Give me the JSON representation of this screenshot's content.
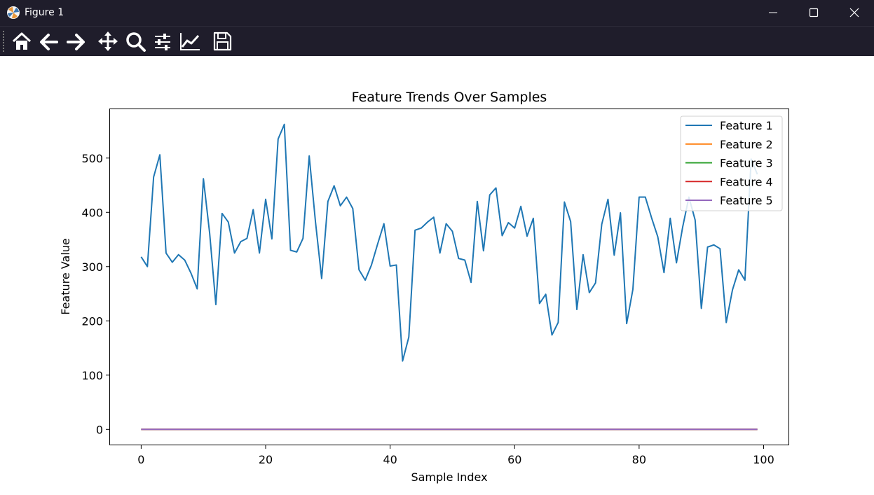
{
  "window": {
    "title": "Figure 1",
    "controls": [
      "minimize",
      "maximize",
      "close"
    ]
  },
  "toolbar": {
    "tools": [
      {
        "name": "home-icon"
      },
      {
        "name": "back-icon"
      },
      {
        "name": "forward-icon"
      },
      {
        "name": "pan-icon"
      },
      {
        "name": "zoom-icon"
      },
      {
        "name": "configure-subplots-icon"
      },
      {
        "name": "edit-axis-icon"
      },
      {
        "name": "save-icon"
      }
    ]
  },
  "chart_data": {
    "type": "line",
    "title": "Feature Trends Over Samples",
    "xlabel": "Sample Index",
    "ylabel": "Feature Value",
    "xlim": [
      -5,
      104
    ],
    "ylim": [
      -28,
      590
    ],
    "xticks": [
      0,
      20,
      40,
      60,
      80,
      100
    ],
    "yticks": [
      0,
      100,
      200,
      300,
      400,
      500
    ],
    "grid": false,
    "legend_position": "top-right",
    "x": [
      0,
      1,
      2,
      3,
      4,
      5,
      6,
      7,
      8,
      9,
      10,
      11,
      12,
      13,
      14,
      15,
      16,
      17,
      18,
      19,
      20,
      21,
      22,
      23,
      24,
      25,
      26,
      27,
      28,
      29,
      30,
      31,
      32,
      33,
      34,
      35,
      36,
      37,
      38,
      39,
      40,
      41,
      42,
      43,
      44,
      45,
      46,
      47,
      48,
      49,
      50,
      51,
      52,
      53,
      54,
      55,
      56,
      57,
      58,
      59,
      60,
      61,
      62,
      63,
      64,
      65,
      66,
      67,
      68,
      69,
      70,
      71,
      72,
      73,
      74,
      75,
      76,
      77,
      78,
      79,
      80,
      81,
      82,
      83,
      84,
      85,
      86,
      87,
      88,
      89,
      90,
      91,
      92,
      93,
      94,
      95,
      96,
      97,
      98,
      99
    ],
    "series": [
      {
        "name": "Feature 1",
        "color": "#1f77b4",
        "values": [
          318,
          300,
          465,
          506,
          325,
          308,
          322,
          312,
          288,
          259,
          462,
          362,
          230,
          398,
          382,
          325,
          346,
          352,
          405,
          325,
          424,
          351,
          535,
          562,
          330,
          327,
          352,
          504,
          383,
          278,
          420,
          449,
          412,
          428,
          407,
          294,
          275,
          303,
          342,
          379,
          301,
          303,
          126,
          170,
          367,
          371,
          382,
          391,
          325,
          379,
          365,
          315,
          312,
          271,
          420,
          329,
          432,
          445,
          357,
          381,
          371,
          411,
          356,
          389,
          232,
          249,
          174,
          197,
          419,
          383,
          221,
          322,
          252,
          270,
          378,
          424,
          321,
          399,
          195,
          258,
          428,
          428,
          390,
          355,
          289,
          389,
          307,
          373,
          428,
          386,
          223,
          336,
          340,
          333,
          197,
          257,
          294,
          275,
          498,
          470
        ]
      },
      {
        "name": "Feature 2",
        "color": "#ff7f0e",
        "values": "zeros"
      },
      {
        "name": "Feature 3",
        "color": "#2ca02c",
        "values": "zeros"
      },
      {
        "name": "Feature 4",
        "color": "#d62728",
        "values": "zeros"
      },
      {
        "name": "Feature 5",
        "color": "#9467bd",
        "values": "zeros"
      }
    ]
  }
}
